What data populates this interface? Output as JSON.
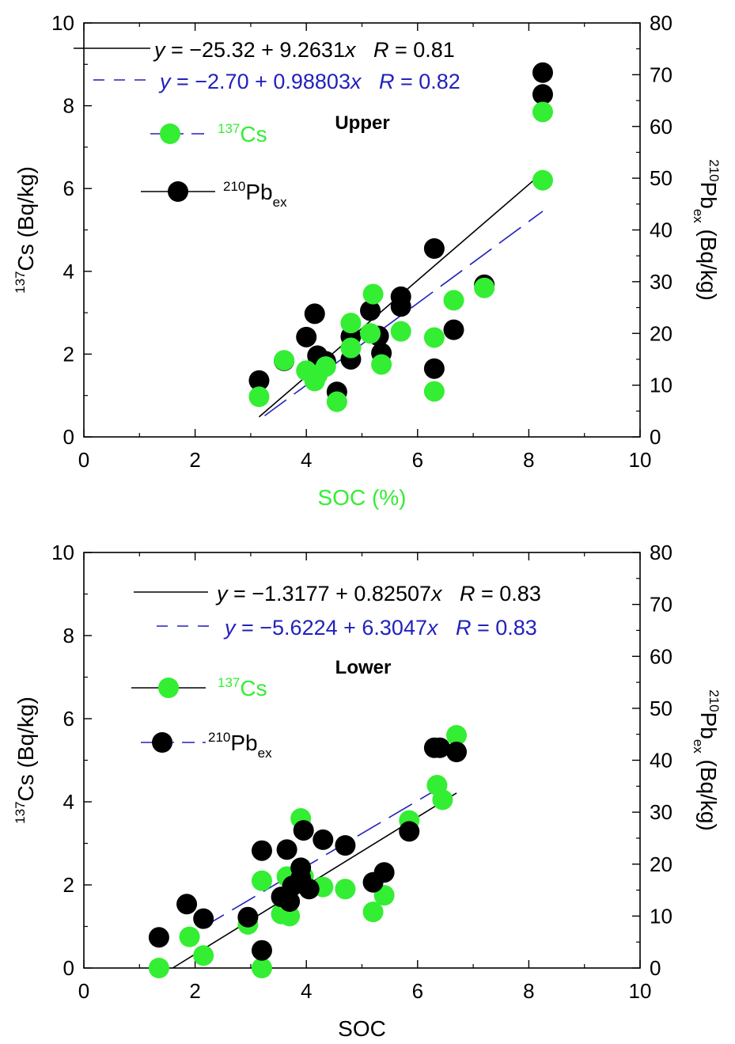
{
  "chart_data": [
    {
      "type": "scatter",
      "panel_title": "Upper",
      "xlabel": "SOC (%)",
      "xlabel_color": "#33ee33",
      "ylabel_left": "137Cs (Bq/kg)",
      "ylabel_right": "210Pbex (Bq/kg)",
      "xlim": [
        0,
        10
      ],
      "ylim_left": [
        0,
        10
      ],
      "ylim_right": [
        0,
        80
      ],
      "x_ticks": [
        "0",
        "2",
        "4",
        "6",
        "8",
        "10"
      ],
      "y_left_ticks": [
        "0",
        "2",
        "4",
        "6",
        "8",
        "10"
      ],
      "y_right_ticks": [
        "0",
        "10",
        "20",
        "30",
        "40",
        "50",
        "60",
        "70",
        "80"
      ],
      "legend": [
        {
          "name": "137Cs",
          "color": "#33ee33",
          "line_color": "#2222bb",
          "line_style": "dashed"
        },
        {
          "name": "210Pbex",
          "color": "#000000",
          "line_color": "#000000",
          "line_style": "solid"
        }
      ],
      "fits": [
        {
          "label": "y = −25.32 + 9.2631x   R = 0.81",
          "color": "#000000",
          "style": "solid",
          "axis": "right",
          "intercept": -25.32,
          "slope": 9.2631,
          "x_range": [
            3.15,
            8.25
          ]
        },
        {
          "label": "y = −2.70 + 0.98803x   R = 0.82",
          "color": "#2222bb",
          "style": "dashed",
          "axis": "left",
          "intercept": -2.7,
          "slope": 0.98803,
          "x_range": [
            3.25,
            8.25
          ]
        }
      ],
      "series": [
        {
          "name": "210Pbex",
          "axis": "right",
          "color": "#000000",
          "points": [
            [
              3.15,
              10.9
            ],
            [
              3.6,
              14.7
            ],
            [
              4.0,
              19.3
            ],
            [
              4.15,
              23.8
            ],
            [
              4.2,
              15.7
            ],
            [
              4.35,
              14.6
            ],
            [
              4.55,
              8.7
            ],
            [
              4.8,
              19.4
            ],
            [
              4.8,
              15.0
            ],
            [
              5.15,
              24.4
            ],
            [
              5.3,
              19.5
            ],
            [
              5.35,
              16.2
            ],
            [
              5.7,
              27.1
            ],
            [
              5.7,
              25.2
            ],
            [
              6.3,
              36.4
            ],
            [
              6.3,
              13.2
            ],
            [
              6.65,
              20.7
            ],
            [
              7.2,
              29.4
            ],
            [
              8.25,
              66.2
            ],
            [
              8.25,
              70.4
            ]
          ]
        },
        {
          "name": "137Cs",
          "axis": "left",
          "color": "#33ee33",
          "points": [
            [
              3.15,
              0.97
            ],
            [
              3.6,
              1.85
            ],
            [
              4.0,
              1.6
            ],
            [
              4.15,
              1.35
            ],
            [
              4.2,
              1.5
            ],
            [
              4.35,
              1.7
            ],
            [
              4.55,
              0.85
            ],
            [
              4.8,
              2.75
            ],
            [
              4.8,
              2.15
            ],
            [
              5.15,
              2.5
            ],
            [
              5.2,
              3.45
            ],
            [
              5.35,
              1.75
            ],
            [
              5.7,
              2.55
            ],
            [
              6.3,
              2.4
            ],
            [
              6.3,
              1.1
            ],
            [
              6.65,
              3.3
            ],
            [
              7.2,
              3.6
            ],
            [
              8.25,
              6.2
            ],
            [
              8.25,
              7.85
            ]
          ]
        }
      ]
    },
    {
      "type": "scatter",
      "panel_title": "Lower",
      "xlabel": "SOC",
      "xlabel_color": "#000000",
      "ylabel_left": "137Cs (Bq/kg)",
      "ylabel_right": "210Pbex (Bq/kg)",
      "xlim": [
        0,
        10
      ],
      "ylim_left": [
        0,
        10
      ],
      "ylim_right": [
        0,
        80
      ],
      "x_ticks": [
        "0",
        "2",
        "4",
        "6",
        "8",
        "10"
      ],
      "y_left_ticks": [
        "0",
        "2",
        "4",
        "6",
        "8",
        "10"
      ],
      "y_right_ticks": [
        "0",
        "10",
        "20",
        "30",
        "40",
        "50",
        "60",
        "70",
        "80"
      ],
      "legend": [
        {
          "name": "137Cs",
          "color": "#33ee33",
          "line_color": "#000000",
          "line_style": "solid"
        },
        {
          "name": "210Pbex",
          "color": "#000000",
          "line_color": "#2222bb",
          "line_style": "dashed"
        }
      ],
      "fits": [
        {
          "label": "y = −1.3177 + 0.82507x   R = 0.83",
          "color": "#000000",
          "style": "solid",
          "axis": "left",
          "intercept": -1.3177,
          "slope": 0.82507,
          "x_range": [
            1.6,
            6.7
          ]
        },
        {
          "label": "y = −5.6224 + 6.3047x   R = 0.83",
          "color": "#2222bb",
          "style": "dashed",
          "axis": "right",
          "intercept": -5.6224,
          "slope": 6.3047,
          "x_range": [
            2.1,
            6.6
          ]
        }
      ],
      "series": [
        {
          "name": "137Cs",
          "axis": "left",
          "color": "#33ee33",
          "points": [
            [
              1.35,
              0.0
            ],
            [
              1.9,
              0.75
            ],
            [
              2.15,
              0.3
            ],
            [
              2.95,
              1.05
            ],
            [
              3.2,
              2.1
            ],
            [
              3.2,
              0.0
            ],
            [
              3.55,
              1.3
            ],
            [
              3.65,
              2.2
            ],
            [
              3.7,
              1.25
            ],
            [
              3.9,
              3.6
            ],
            [
              3.95,
              2.2
            ],
            [
              4.3,
              1.95
            ],
            [
              4.7,
              1.9
            ],
            [
              5.2,
              1.35
            ],
            [
              5.4,
              1.75
            ],
            [
              5.85,
              3.55
            ],
            [
              6.35,
              4.4
            ],
            [
              6.45,
              4.05
            ],
            [
              6.7,
              5.6
            ]
          ]
        },
        {
          "name": "210Pbex",
          "axis": "right",
          "color": "#000000",
          "points": [
            [
              1.35,
              5.9
            ],
            [
              1.85,
              12.3
            ],
            [
              2.15,
              9.5
            ],
            [
              2.95,
              9.8
            ],
            [
              3.2,
              22.6
            ],
            [
              3.2,
              3.4
            ],
            [
              3.55,
              13.7
            ],
            [
              3.65,
              22.8
            ],
            [
              3.7,
              12.8
            ],
            [
              3.75,
              15.8
            ],
            [
              3.9,
              19.3
            ],
            [
              3.9,
              17.3
            ],
            [
              3.95,
              26.5
            ],
            [
              4.05,
              15.2
            ],
            [
              4.3,
              24.7
            ],
            [
              4.7,
              23.6
            ],
            [
              5.2,
              16.5
            ],
            [
              5.4,
              18.4
            ],
            [
              5.85,
              26.3
            ],
            [
              6.3,
              42.4
            ],
            [
              6.4,
              42.4
            ],
            [
              6.7,
              41.6
            ]
          ]
        }
      ]
    }
  ]
}
